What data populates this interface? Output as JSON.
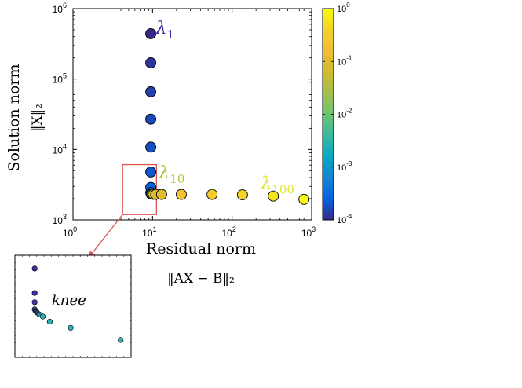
{
  "chart_data": [
    {
      "type": "scatter",
      "id": "main",
      "xlabel": "Residual norm",
      "xlabel_math": "‖AX − B‖₂",
      "ylabel": "Solution norm",
      "ylabel_math": "‖X‖₂",
      "x_scale": "log",
      "y_scale": "log",
      "xlim": [
        1,
        1000
      ],
      "ylim": [
        1000,
        1000000
      ],
      "x_ticks": [
        {
          "base": "10",
          "exp": "0"
        },
        {
          "base": "10",
          "exp": "1"
        },
        {
          "base": "10",
          "exp": "2"
        },
        {
          "base": "10",
          "exp": "3"
        }
      ],
      "y_ticks": [
        {
          "base": "10",
          "exp": "3"
        },
        {
          "base": "10",
          "exp": "4"
        },
        {
          "base": "10",
          "exp": "5"
        },
        {
          "base": "10",
          "exp": "6"
        }
      ],
      "grid": false,
      "points": [
        {
          "x": 9.5,
          "y": 440000,
          "c": 0.0001
        },
        {
          "x": 9.5,
          "y": 170000,
          "c": 0.00012
        },
        {
          "x": 9.5,
          "y": 66000,
          "c": 0.00014
        },
        {
          "x": 9.5,
          "y": 27000,
          "c": 0.00016
        },
        {
          "x": 9.5,
          "y": 10800,
          "c": 0.00018
        },
        {
          "x": 9.5,
          "y": 4800,
          "c": 0.0002
        },
        {
          "x": 9.5,
          "y": 2900,
          "c": 0.00025
        },
        {
          "x": 9.5,
          "y": 2450,
          "c": 0.0003
        },
        {
          "x": 9.6,
          "y": 2330,
          "c": 0.001
        },
        {
          "x": 9.8,
          "y": 2320,
          "c": 0.005
        },
        {
          "x": 10.2,
          "y": 2310,
          "c": 0.05
        },
        {
          "x": 11.0,
          "y": 2300,
          "c": 0.07
        },
        {
          "x": 13.0,
          "y": 2300,
          "c": 0.1
        },
        {
          "x": 23.0,
          "y": 2300,
          "c": 0.2
        },
        {
          "x": 56.0,
          "y": 2300,
          "c": 0.3
        },
        {
          "x": 135.0,
          "y": 2270,
          "c": 0.4
        },
        {
          "x": 330.0,
          "y": 2180,
          "c": 0.6
        },
        {
          "x": 800.0,
          "y": 1960,
          "c": 1.0
        }
      ],
      "annotations": [
        {
          "symbol": "λ",
          "sub": "1",
          "x": 11,
          "y": 440000,
          "color": "#3b2ea6"
        },
        {
          "symbol": "λ",
          "sub": "10",
          "x": 12,
          "y": 3900,
          "color": "#a8c935"
        },
        {
          "symbol": "λ",
          "sub": "100",
          "x": 230,
          "y": 2750,
          "color": "#e8e524"
        }
      ],
      "zoom_box": {
        "x0": 4.2,
        "x1": 11.2,
        "y0": 1190,
        "y1": 6100,
        "color": "#d9534f"
      },
      "colorbar": {
        "scale": "log",
        "clim": [
          0.0001,
          1
        ],
        "colormap": "parula",
        "ticks": [
          {
            "base": "10",
            "exp": "0"
          },
          {
            "base": "10",
            "exp": "-1"
          },
          {
            "base": "10",
            "exp": "-2"
          },
          {
            "base": "10",
            "exp": "-3"
          },
          {
            "base": "10",
            "exp": "-4"
          }
        ]
      }
    },
    {
      "type": "scatter",
      "id": "inset",
      "label": "knee",
      "xlim": [
        0,
        1
      ],
      "ylim": [
        0,
        1
      ],
      "points": [
        {
          "x": 0.17,
          "y": 0.87,
          "c": "#3b2ea6"
        },
        {
          "x": 0.17,
          "y": 0.63,
          "c": "#3b2ea6"
        },
        {
          "x": 0.17,
          "y": 0.54,
          "c": "#3d33b0"
        },
        {
          "x": 0.17,
          "y": 0.47,
          "c": "#2d3c8a"
        },
        {
          "x": 0.18,
          "y": 0.45,
          "c": "#1f2a60"
        },
        {
          "x": 0.19,
          "y": 0.44,
          "c": "#26414f"
        },
        {
          "x": 0.21,
          "y": 0.42,
          "c": "#2e8ba8"
        },
        {
          "x": 0.24,
          "y": 0.4,
          "c": "#2aaeb5"
        },
        {
          "x": 0.3,
          "y": 0.35,
          "c": "#2ab3b4"
        },
        {
          "x": 0.48,
          "y": 0.29,
          "c": "#2ab3b4"
        },
        {
          "x": 0.91,
          "y": 0.17,
          "c": "#33b8b0"
        }
      ]
    }
  ]
}
